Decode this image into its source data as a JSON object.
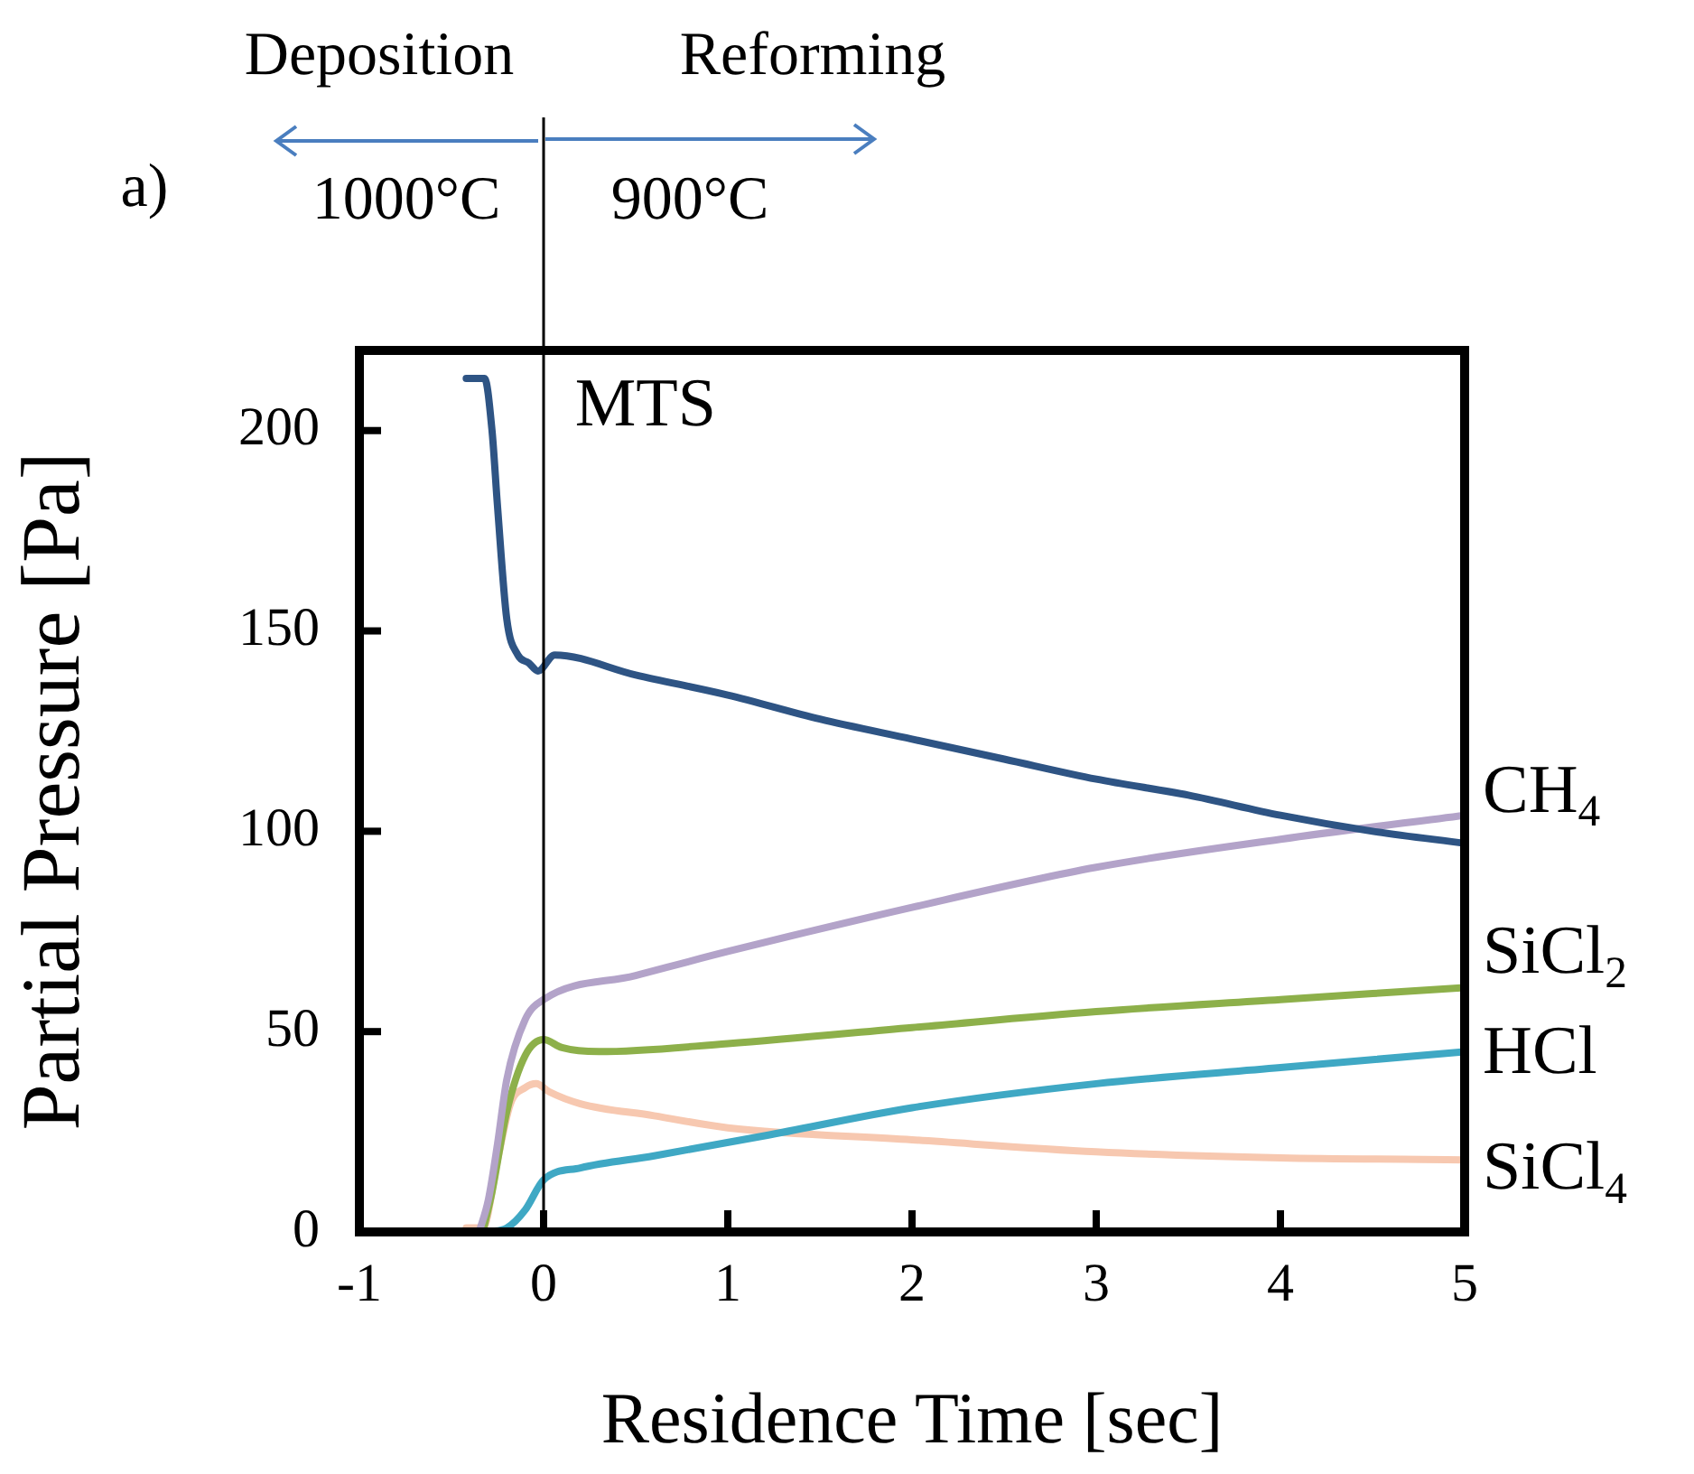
{
  "chart_data": {
    "type": "line",
    "xlabel": "Residence Time [sec]",
    "ylabel": "Partial Pressure [Pa]",
    "xlim": [
      -1,
      5
    ],
    "xticks": [
      -1,
      0,
      1,
      2,
      3,
      4,
      5
    ],
    "ylim": [
      0,
      220
    ],
    "yticks": [
      0,
      50,
      100,
      150,
      200
    ],
    "grid": false,
    "legend": false,
    "marker": "none",
    "line_style": "solid",
    "ref_lines": [
      {
        "axis": "x",
        "value": 0,
        "color": "#000000"
      }
    ],
    "annotations": [
      "Deposition",
      "Reforming",
      "a)",
      "1000°C",
      "900°C"
    ],
    "series": [
      {
        "name": "MTS",
        "color": "#2e5484",
        "x": [
          -0.42,
          -0.32,
          -0.28,
          -0.25,
          -0.2,
          -0.14,
          -0.08,
          -0.03,
          0.06,
          0.5,
          1,
          1.5,
          2,
          2.5,
          3,
          3.5,
          4,
          4.5,
          5
        ],
        "values": [
          213,
          213,
          200,
          181,
          153,
          144,
          142,
          140,
          144,
          139,
          134,
          128,
          123,
          118,
          113,
          109,
          104,
          100,
          97
        ]
      },
      {
        "name": "CH$_{4}$",
        "color": "#b3a3c9",
        "x": [
          -0.35,
          -0.3,
          -0.25,
          -0.2,
          -0.1,
          0,
          0.5,
          1,
          2,
          3,
          4,
          5
        ],
        "values": [
          0,
          8,
          22,
          38,
          53,
          58,
          64,
          70,
          81,
          91,
          98,
          104
        ]
      },
      {
        "name": "SiCl$_{2}$",
        "color": "#8db04a",
        "x": [
          -0.33,
          -0.28,
          -0.2,
          -0.1,
          0,
          0.1,
          0.3,
          1,
          2,
          3,
          4,
          5
        ],
        "values": [
          0,
          10,
          30,
          44,
          48,
          46,
          45,
          47,
          51,
          55,
          58,
          61
        ]
      },
      {
        "name": "HCl",
        "color": "#3fa8c4",
        "x": [
          -0.3,
          -0.2,
          -0.1,
          0,
          0.2,
          0.6,
          1.2,
          2,
          3,
          4,
          5
        ],
        "values": [
          0,
          1,
          5.5,
          13,
          16,
          19,
          24,
          31,
          37,
          41,
          45
        ]
      },
      {
        "name": "SiCl$_{4}$",
        "color": "#f7c8b0",
        "x": [
          -0.42,
          -0.33,
          -0.25,
          -0.18,
          -0.1,
          -0.04,
          0.03,
          0.2,
          0.6,
          1,
          2,
          3,
          4,
          5
        ],
        "values": [
          1,
          1,
          18,
          32,
          36,
          37,
          35,
          32,
          29,
          26,
          23,
          20,
          18.5,
          18
        ]
      }
    ]
  }
}
